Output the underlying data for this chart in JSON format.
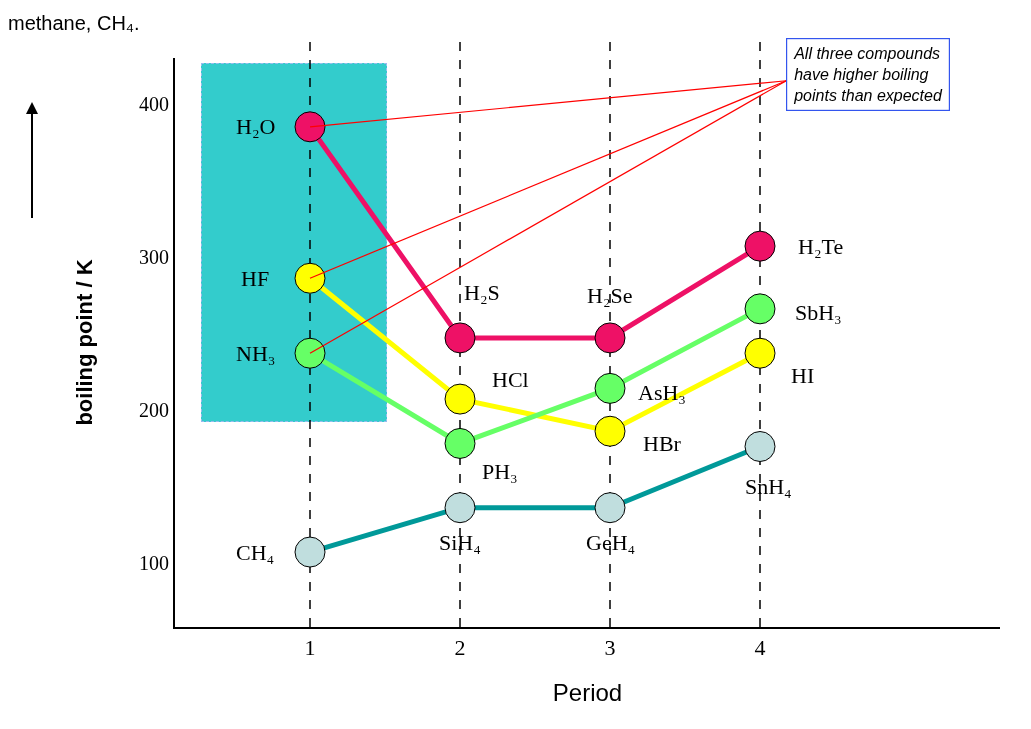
{
  "chart_data": {
    "type": "line",
    "xlabel": "Period",
    "ylabel": "boiling point / K",
    "xlim": [
      0.1,
      5.6
    ],
    "xticks": [
      1,
      2,
      3,
      4
    ],
    "ylim": [
      58,
      430
    ],
    "yticks": [
      100,
      200,
      300,
      400
    ],
    "grid": false,
    "marker": "circle",
    "line_style": "solid",
    "x": [
      1,
      2,
      3,
      4
    ],
    "series": [
      {
        "color": "#ee1166",
        "values": [
          385,
          247,
          247,
          307
        ]
      },
      {
        "color": "#ffff00",
        "values": [
          286,
          207,
          186,
          237
        ]
      },
      {
        "color": "#66ff66",
        "values": [
          237,
          178,
          214,
          266
        ]
      },
      {
        "color": "#009999",
        "colors": [
          "#c0dede",
          "#c0dede",
          "#c0dede",
          "#c0dede"
        ],
        "values": [
          107,
          136,
          136,
          176
        ]
      }
    ],
    "ref_lines": [
      {
        "axis": "x",
        "value": 1,
        "color": "#000000",
        "line_style": "dashed"
      },
      {
        "axis": "x",
        "value": 2,
        "color": "#000000",
        "line_style": "dashed"
      },
      {
        "axis": "x",
        "value": 3,
        "color": "#000000",
        "line_style": "dashed"
      },
      {
        "axis": "x",
        "value": 4,
        "color": "#000000",
        "line_style": "dashed"
      }
    ],
    "annotations": [
      {
        "text": "H₂O",
        "x": 1,
        "y": 385
      },
      {
        "text": "HF",
        "x": 1,
        "y": 286
      },
      {
        "text": "NH₃",
        "x": 1,
        "y": 237
      },
      {
        "text": "CH₄",
        "x": 1,
        "y": 107
      },
      {
        "text": "H₂S",
        "x": 2,
        "y": 247
      },
      {
        "text": "HCl",
        "x": 2,
        "y": 207
      },
      {
        "text": "PH₃",
        "x": 2,
        "y": 178
      },
      {
        "text": "SiH₄",
        "x": 2,
        "y": 136
      },
      {
        "text": "H₂Se",
        "x": 3,
        "y": 247
      },
      {
        "text": "HBr",
        "x": 3,
        "y": 186
      },
      {
        "text": "AsH₃",
        "x": 3,
        "y": 214
      },
      {
        "text": "GeH₄",
        "x": 3,
        "y": 136
      },
      {
        "text": "H₂Te",
        "x": 4,
        "y": 307
      },
      {
        "text": "SbH₃",
        "x": 4,
        "y": 266
      },
      {
        "text": "HI",
        "x": 4,
        "y": 237
      },
      {
        "text": "SnH₄",
        "x": 4,
        "y": 176
      },
      "All three compounds\nhave higher boiling\npoints than expected",
      "methane, CH₄."
    ]
  }
}
